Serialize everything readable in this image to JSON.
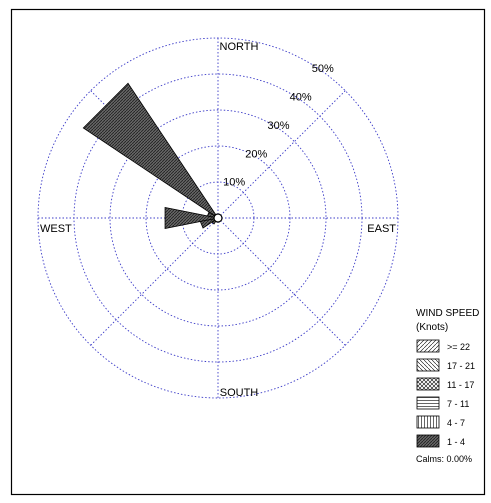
{
  "chart_data": {
    "type": "wind-rose",
    "rings": [
      {
        "value": 10,
        "label": "10%"
      },
      {
        "value": 20,
        "label": "20%"
      },
      {
        "value": 30,
        "label": "30%"
      },
      {
        "value": 40,
        "label": "40%"
      },
      {
        "value": 50,
        "label": "50%"
      }
    ],
    "rmax": 50,
    "directions": {
      "north": "NORTH",
      "east": "EAST",
      "south": "SOUTH",
      "west": "WEST"
    },
    "petals": [
      {
        "bearing_deg": 270,
        "values": {
          "1-4": 15
        }
      },
      {
        "bearing_deg": 292.5,
        "values": {
          "1-4": 3
        }
      },
      {
        "bearing_deg": 315,
        "values": {
          "1-4": 45
        }
      },
      {
        "bearing_deg": 247.5,
        "values": {
          "1-4": 5
        }
      },
      {
        "bearing_deg": 225,
        "values": {
          "1-4": 2
        }
      }
    ],
    "legend": {
      "title_line1": "WIND SPEED",
      "title_line2": "(Knots)",
      "bins": [
        {
          "key": ">=22",
          "label": ">= 22",
          "pattern": "diag-fwd"
        },
        {
          "key": "17-21",
          "label": "17 - 21",
          "pattern": "diag-back"
        },
        {
          "key": "11-17",
          "label": "11 - 17",
          "pattern": "cross"
        },
        {
          "key": "7-11",
          "label": "7 - 11",
          "pattern": "horizontal"
        },
        {
          "key": "4-7",
          "label": "4 - 7",
          "pattern": "vertical"
        },
        {
          "key": "1-4",
          "label": "1 - 4",
          "pattern": "dense"
        }
      ],
      "calms": "Calms: 0.00%"
    },
    "colors": {
      "grid": "#3c3cc8",
      "petal_dark": "#555555"
    }
  }
}
